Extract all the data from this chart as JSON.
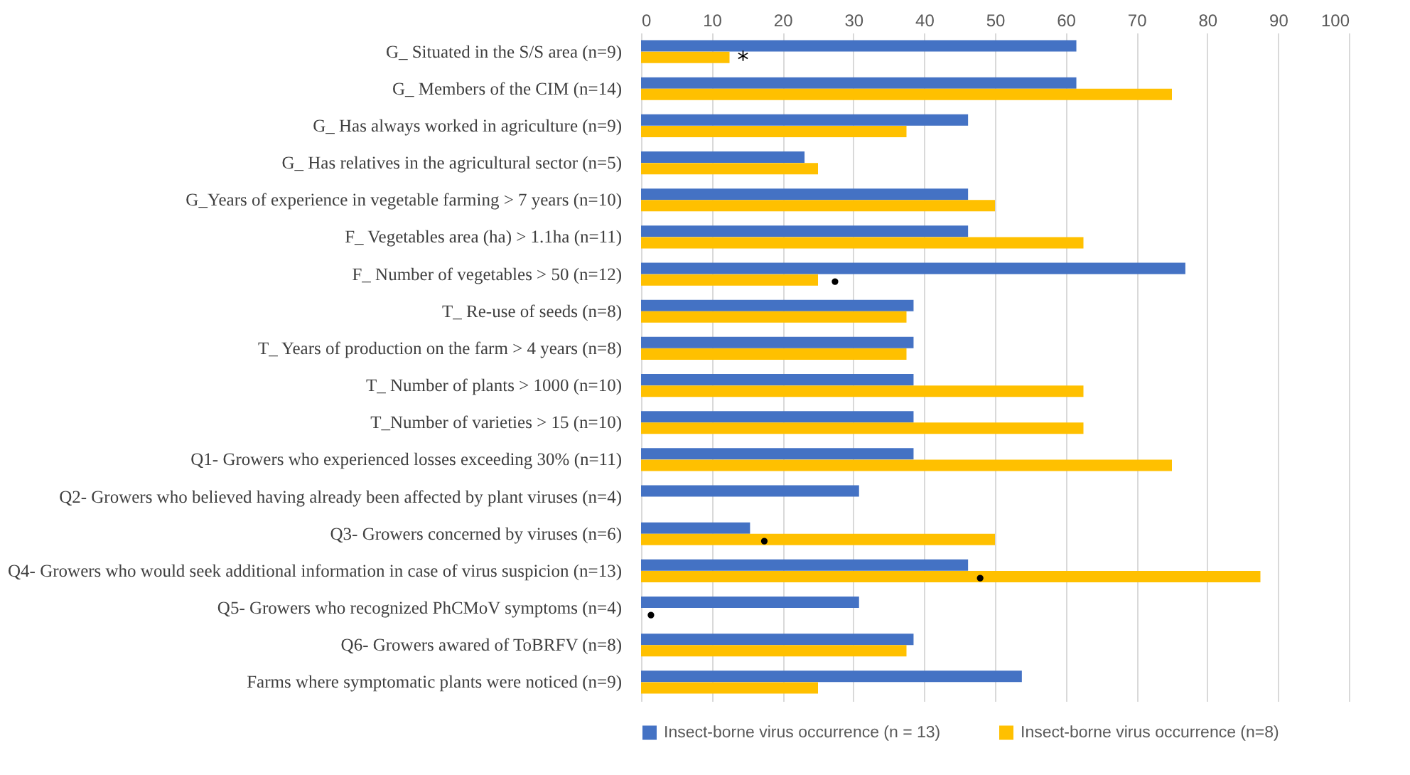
{
  "chart_data": {
    "type": "bar",
    "orientation": "horizontal",
    "categories": [
      "G_ Situated in the S/S area (n=9)",
      "G_ Members of the CIM (n=14)",
      "G_ Has always worked in agriculture (n=9)",
      "G_ Has relatives in the agricultural sector (n=5)",
      "G_Years of experience in vegetable farming > 7 years (n=10)",
      "F_ Vegetables area (ha) > 1.1ha (n=11)",
      "F_ Number of vegetables > 50 (n=12)",
      "T_ Re-use of seeds (n=8)",
      "T_ Years of production on the farm > 4 years (n=8)",
      "T_ Number of plants > 1000 (n=10)",
      "T_Number of varieties > 15 (n=10)",
      "Q1- Growers who experienced losses exceeding 30% (n=11)",
      "Q2- Growers who believed having already been affected by plant viruses (n=4)",
      "Q3- Growers concerned by viruses (n=6)",
      "Q4- Growers who would seek additional information in case of virus suspicion (n=13)",
      "Q5- Growers who recognized PhCMoV symptoms (n=4)",
      "Q6- Growers awared of ToBRFV (n=8)",
      "Farms where symptomatic plants were noticed (n=9)"
    ],
    "series": [
      {
        "name": "Insect-borne virus occurrence (n = 13)",
        "color": "#4472c4",
        "values": [
          61.5,
          61.5,
          46.2,
          23.1,
          46.2,
          46.2,
          76.9,
          38.5,
          38.5,
          38.5,
          38.5,
          38.5,
          30.8,
          15.4,
          46.2,
          30.8,
          38.5,
          53.8
        ]
      },
      {
        "name": "Insect-borne virus occurrence (n=8)",
        "color": "#ffc000",
        "values": [
          12.5,
          75,
          37.5,
          25,
          50,
          62.5,
          25,
          37.5,
          37.5,
          62.5,
          62.5,
          75,
          0,
          50,
          87.5,
          0,
          37.5,
          25
        ]
      }
    ],
    "xlim": [
      0,
      100
    ],
    "xticks": [
      0,
      10,
      20,
      30,
      40,
      50,
      60,
      70,
      80,
      90,
      100
    ],
    "grid": "x",
    "legend": "bottom",
    "annotations": [
      {
        "text": "*",
        "x": 14,
        "y": "G_ Situated in the S/S area (n=9)"
      },
      {
        "text": "•",
        "x": 27,
        "y": "F_ Number of vegetables > 50 (n=12)"
      },
      {
        "text": "•",
        "x": 17,
        "y": "Q3- Growers concerned by viruses (n=6)"
      },
      {
        "text": "•",
        "x": 47.5,
        "y": "Q4- Growers who would seek additional information in case of virus suspicion (n=13)"
      },
      {
        "text": "•",
        "x": 1,
        "y": "Q5- Growers who recognized PhCMoV symptoms (n=4)"
      }
    ]
  }
}
